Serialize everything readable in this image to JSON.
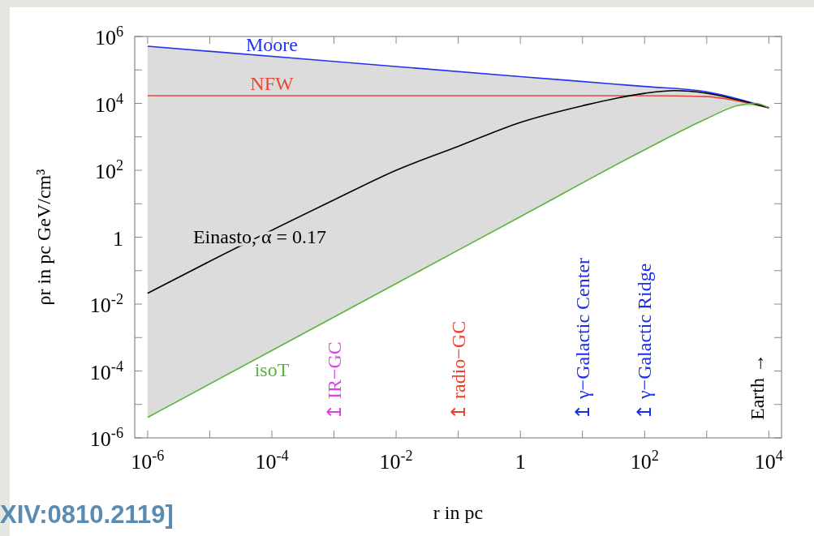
{
  "chart_data": {
    "type": "line",
    "log": "xy",
    "grid": false,
    "xlabel": "r in pc",
    "ylabel": "ρr in pc GeV/cm³",
    "xlim": [
      6.2e-07,
      16000.0
    ],
    "ylim": [
      1e-06,
      1000000.0
    ],
    "xticks": [
      {
        "value": 1e-06,
        "label": "10$^{-6}$"
      },
      {
        "value": 1e-05,
        "label": null
      },
      {
        "value": 0.0001,
        "label": "10$^{-4}$"
      },
      {
        "value": 0.001,
        "label": null
      },
      {
        "value": 0.01,
        "label": "10$^{-2}$"
      },
      {
        "value": 0.1,
        "label": null
      },
      1,
      {
        "value": 10,
        "label": null
      },
      {
        "value": 100,
        "label": "10$^{2}$"
      },
      {
        "value": 1000,
        "label": null
      },
      {
        "value": 10000,
        "label": "10$^{4}$"
      }
    ],
    "yticks": [
      {
        "value": 1e-06,
        "label": "10$^{-6}$"
      },
      {
        "value": 1e-05,
        "label": null
      },
      {
        "value": 0.0001,
        "label": "10$^{-4}$"
      },
      {
        "value": 0.001,
        "label": null
      },
      {
        "value": 0.01,
        "label": "10$^{-2}$"
      },
      {
        "value": 0.1,
        "label": null
      },
      1,
      {
        "value": 10,
        "label": null
      },
      {
        "value": 100,
        "label": "10$^{2}$"
      },
      {
        "value": 1000,
        "label": null
      },
      {
        "value": 10000,
        "label": "10$^{4}$"
      },
      {
        "value": 100000,
        "label": null
      },
      {
        "value": 1000000,
        "label": "10$^{6}$"
      }
    ],
    "series": [
      {
        "name": "Moore",
        "color": "#2233ee",
        "x": [
          1e-06,
          0.001,
          1,
          100,
          1000,
          3000,
          10000
        ],
        "values": [
          510000,
          180000,
          63000,
          32000,
          22000,
          14000,
          7400
        ]
      },
      {
        "name": "NFW",
        "color": "#e84a3a",
        "x": [
          1e-06,
          100,
          1000,
          3000,
          10000
        ],
        "values": [
          17000,
          17000,
          16000,
          12000,
          7400
        ]
      },
      {
        "name": "Einasto, α = 0.17",
        "color": "#000000",
        "x": [
          1e-06,
          1e-05,
          0.001,
          0.01,
          0.1,
          1,
          10,
          100,
          300,
          1000,
          3000,
          10000
        ],
        "values": [
          0.021,
          0.19,
          13,
          100,
          520,
          2700,
          8500,
          20000,
          24000,
          20000,
          13000,
          7400
        ],
        "lower": [
          4.1e-06,
          4.1e-05,
          0.0041,
          0.041,
          0.41,
          4.1,
          41,
          410,
          1200,
          3500,
          8500,
          7400
        ],
        "upper": [
          510000,
          360000,
          180000,
          130000,
          91000,
          65000,
          46000,
          32000,
          27000,
          22000,
          14000,
          7400
        ]
      },
      {
        "name": "isoT",
        "color": "#5ab43c",
        "x": [
          1e-06,
          0.0001,
          0.01,
          1,
          100,
          1000,
          3000,
          6000,
          10000
        ],
        "values": [
          4.1e-06,
          0.00041,
          0.041,
          4.1,
          410,
          3500,
          8500,
          10000,
          7400
        ]
      }
    ],
    "annotations": [
      "↥ IR−GC",
      "↥ radio−GC",
      "↥ γ−Galactic Center",
      "↥ γ−Galactic Ridge",
      "Earth →",
      "XIV:0810.2119]"
    ]
  }
}
